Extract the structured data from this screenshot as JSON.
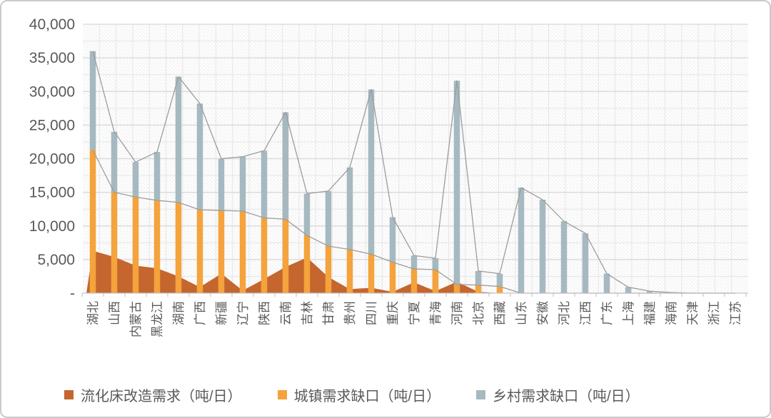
{
  "figure": {
    "background": "#FFFFFF",
    "border_color": "#CBCBCB"
  },
  "chart_data": {
    "type": "combo: stacked column + area + overlay lines",
    "title": "",
    "xlabel": "",
    "ylabel": "",
    "ylim": [
      0,
      40000
    ],
    "y_tick_interval": 5000,
    "y_ticks": [
      "40,000",
      "35,000",
      "30,000",
      "25,000",
      "20,000",
      "15,000",
      "10,000",
      "5,000",
      "-"
    ],
    "grid": true,
    "plot_area_fill": "light diagonal hatch with fine grid",
    "legend_position": "bottom",
    "categories": [
      "湖北",
      "山西",
      "内蒙古",
      "黑龙江",
      "湖南",
      "广西",
      "新疆",
      "辽宁",
      "陕西",
      "云南",
      "吉林",
      "甘肃",
      "贵州",
      "四川",
      "重庆",
      "宁夏",
      "青海",
      "河南",
      "北京",
      "西藏",
      "山东",
      "安徽",
      "河北",
      "江西",
      "广东",
      "上海",
      "福建",
      "海南",
      "天津",
      "浙江",
      "江苏"
    ],
    "series": [
      {
        "name": "流化床改造需求（吨/日）",
        "type": "area",
        "color": "#C4662D",
        "values": [
          6300,
          5400,
          4100,
          3700,
          2500,
          900,
          2900,
          400,
          2100,
          3900,
          5300,
          2400,
          600,
          800,
          200,
          1600,
          300,
          1700,
          200,
          0,
          0,
          0,
          0,
          0,
          0,
          0,
          0,
          0,
          0,
          0,
          0
        ]
      },
      {
        "name": "城镇需求缺口（吨/日）",
        "type": "bar",
        "stack": "demand-gap",
        "color": "#F4A33D",
        "values": [
          21300,
          15000,
          14300,
          13800,
          13500,
          12400,
          12300,
          12200,
          11200,
          11000,
          8600,
          7000,
          6500,
          5800,
          4600,
          3600,
          3500,
          1300,
          1200,
          1000,
          0,
          0,
          0,
          0,
          0,
          0,
          0,
          0,
          0,
          0,
          0
        ]
      },
      {
        "name": "乡村需求缺口（吨/日）",
        "type": "bar",
        "stack": "demand-gap",
        "color": "#A6B9C0",
        "values": [
          14700,
          9000,
          5200,
          7200,
          18700,
          15800,
          7700,
          8100,
          10000,
          15900,
          6200,
          8200,
          12200,
          24500,
          6700,
          2000,
          1700,
          30300,
          2100,
          1900,
          15700,
          13900,
          10700,
          8900,
          2900,
          900,
          300,
          100,
          0,
          0,
          0
        ]
      }
    ],
    "overlay_lines": [
      {
        "tracks": "城镇+乡村合计（柱顶连线）",
        "color": "#9D9D9D"
      },
      {
        "tracks": "城镇需求缺口（橙柱顶连线）",
        "color": "#9D9D9D"
      }
    ]
  },
  "legend": {
    "items": [
      {
        "label": "流化床改造需求（吨/日）",
        "color": "#C4662D"
      },
      {
        "label": "城镇需求缺口（吨/日）",
        "color": "#F4A33D"
      },
      {
        "label": "乡村需求缺口（吨/日）",
        "color": "#A6B9C0"
      }
    ]
  }
}
